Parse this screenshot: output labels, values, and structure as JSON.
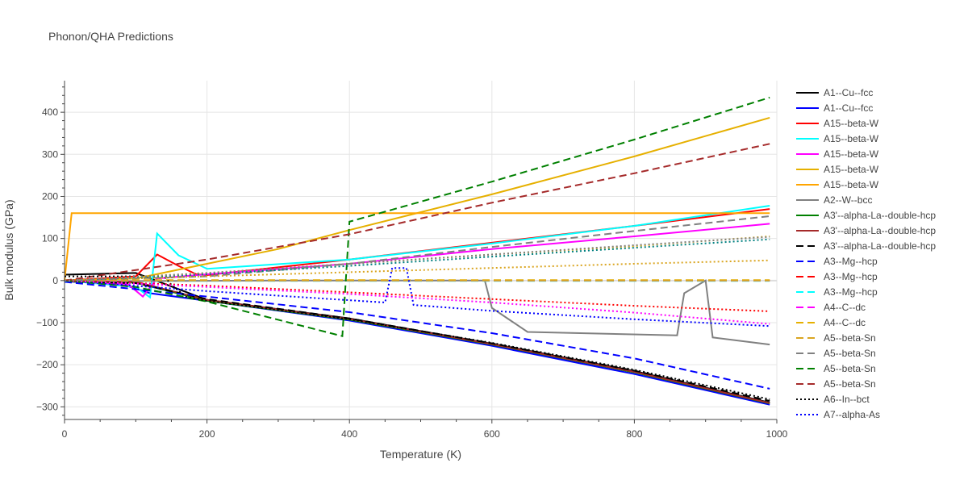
{
  "chart_data": {
    "type": "line",
    "title": "Phonon/QHA Predictions",
    "xlabel": "Temperature (K)",
    "ylabel": "Bulk modulus (GPa)",
    "xlim": [
      0,
      1000
    ],
    "ylim": [
      -330,
      475
    ],
    "xticks": [
      0,
      200,
      400,
      600,
      800,
      1000
    ],
    "yticks": [
      -300,
      -200,
      -100,
      0,
      100,
      200,
      300,
      400
    ],
    "grid": true,
    "legend_position": "right",
    "series": [
      {
        "name": "A1--Cu--fcc",
        "color": "#000000",
        "dash": "solid",
        "x": [
          0,
          100,
          200,
          400,
          600,
          800,
          990
        ],
        "y": [
          14,
          18,
          -46,
          -90,
          -150,
          -215,
          -290
        ]
      },
      {
        "name": "A1--Cu--fcc",
        "color": "#0000ff",
        "dash": "solid",
        "x": [
          0,
          80,
          120,
          200,
          400,
          600,
          800,
          990
        ],
        "y": [
          -2,
          -8,
          -30,
          -48,
          -95,
          -155,
          -222,
          -295
        ]
      },
      {
        "name": "A15--beta-W",
        "color": "#ff0000",
        "dash": "solid",
        "x": [
          0,
          100,
          130,
          160,
          185,
          200,
          400,
          600,
          800,
          990
        ],
        "y": [
          0,
          10,
          62,
          35,
          15,
          13,
          50,
          90,
          130,
          170
        ]
      },
      {
        "name": "A15--beta-W",
        "color": "#00ffff",
        "dash": "solid",
        "x": [
          0,
          100,
          120,
          130,
          160,
          200,
          400,
          600,
          800,
          990
        ],
        "y": [
          0,
          -15,
          -40,
          112,
          60,
          28,
          50,
          88,
          130,
          178
        ]
      },
      {
        "name": "A15--beta-W",
        "color": "#ff00ff",
        "dash": "solid",
        "x": [
          0,
          90,
          110,
          130,
          200,
          400,
          600,
          800,
          990
        ],
        "y": [
          0,
          -10,
          -38,
          5,
          15,
          40,
          75,
          105,
          135
        ]
      },
      {
        "name": "A15--beta-W",
        "color": "#e6b000",
        "dash": "solid",
        "x": [
          0,
          100,
          200,
          300,
          400,
          600,
          800,
          990
        ],
        "y": [
          0,
          5,
          40,
          75,
          120,
          205,
          295,
          387
        ]
      },
      {
        "name": "A15--beta-W",
        "color": "#ffa500",
        "dash": "solid",
        "x": [
          0,
          10,
          400,
          600,
          800,
          990
        ],
        "y": [
          0,
          160,
          160,
          160,
          160,
          160
        ]
      },
      {
        "name": "A2--W--bcc",
        "color": "#808080",
        "dash": "solid",
        "x": [
          0,
          300,
          590,
          600,
          650,
          860,
          870,
          900,
          910,
          990
        ],
        "y": [
          -2,
          0,
          0,
          -65,
          -122,
          -130,
          -30,
          0,
          -135,
          -152
        ]
      },
      {
        "name": "A3'--alpha-La--double-hcp",
        "color": "#008000",
        "dash": "solid",
        "x": [
          0,
          100,
          200,
          400,
          600,
          800,
          990
        ],
        "y": [
          -2,
          -5,
          -48,
          -93,
          -152,
          -218,
          -292
        ]
      },
      {
        "name": "A3'--alpha-La--double-hcp",
        "color": "#a52a2a",
        "dash": "solid",
        "x": [
          0,
          100,
          200,
          400,
          600,
          800,
          990
        ],
        "y": [
          -1,
          -3,
          -46,
          -91,
          -151,
          -217,
          -291
        ]
      },
      {
        "name": "A3'--alpha-La--double-hcp",
        "color": "#000000",
        "dash": "dash",
        "x": [
          0,
          100,
          200,
          400,
          600,
          800,
          990
        ],
        "y": [
          -3,
          -6,
          -44,
          -90,
          -149,
          -214,
          -286
        ]
      },
      {
        "name": "A3--Mg--hcp",
        "color": "#0000ff",
        "dash": "dash",
        "x": [
          0,
          200,
          400,
          600,
          800,
          990
        ],
        "y": [
          -3,
          -38,
          -75,
          -125,
          -185,
          -257
        ]
      },
      {
        "name": "A3--Mg--hcp",
        "color": "#ff0000",
        "dash": "dash",
        "x": [
          0,
          400,
          990
        ],
        "y": [
          0,
          0,
          0
        ]
      },
      {
        "name": "A3--Mg--hcp",
        "color": "#00ffff",
        "dash": "dash",
        "x": [
          0,
          400,
          990
        ],
        "y": [
          -1,
          -1,
          -1
        ]
      },
      {
        "name": "A4--C--dc",
        "color": "#ff00ff",
        "dash": "dash",
        "x": [
          0,
          400,
          990
        ],
        "y": [
          0,
          0,
          0
        ]
      },
      {
        "name": "A4--C--dc",
        "color": "#e6b000",
        "dash": "dash",
        "x": [
          0,
          400,
          990
        ],
        "y": [
          1,
          1,
          1
        ]
      },
      {
        "name": "A5--beta-Sn",
        "color": "#daa520",
        "dash": "dash",
        "x": [
          0,
          400,
          990
        ],
        "y": [
          0,
          0,
          0
        ]
      },
      {
        "name": "A5--beta-Sn",
        "color": "#808080",
        "dash": "dash",
        "x": [
          0,
          200,
          400,
          600,
          800,
          990
        ],
        "y": [
          0,
          10,
          40,
          80,
          118,
          153
        ]
      },
      {
        "name": "A5--beta-Sn",
        "color": "#008000",
        "dash": "dash",
        "x": [
          0,
          100,
          200,
          390,
          400,
          600,
          800,
          990
        ],
        "y": [
          0,
          -15,
          -50,
          -132,
          140,
          235,
          335,
          435
        ]
      },
      {
        "name": "A5--beta-Sn",
        "color": "#a52a2a",
        "dash": "dash",
        "x": [
          0,
          200,
          400,
          600,
          800,
          990
        ],
        "y": [
          0,
          50,
          110,
          185,
          255,
          325
        ]
      },
      {
        "name": "A6--In--bct",
        "color": "#000000",
        "dash": "dot",
        "x": [
          0,
          140,
          150,
          170,
          200,
          400,
          600,
          800,
          990
        ],
        "y": [
          10,
          10,
          -10,
          -38,
          -48,
          -92,
          -148,
          -212,
          -282
        ]
      },
      {
        "name": "A7--alpha-As",
        "color": "#0000ff",
        "dash": "dot",
        "x": [
          0,
          200,
          450,
          460,
          480,
          490,
          600,
          800,
          990
        ],
        "y": [
          0,
          -25,
          -52,
          30,
          30,
          -58,
          -72,
          -92,
          -108
        ]
      },
      {
        "name": "",
        "color": "#ff0000",
        "dash": "dot",
        "x": [
          0,
          200,
          400,
          600,
          800,
          990
        ],
        "y": [
          0,
          -12,
          -28,
          -44,
          -60,
          -73
        ]
      },
      {
        "name": "",
        "color": "#ff00ff",
        "dash": "dot",
        "x": [
          0,
          200,
          400,
          600,
          800,
          990
        ],
        "y": [
          0,
          -15,
          -32,
          -52,
          -76,
          -103
        ]
      },
      {
        "name": "",
        "color": "#e6b000",
        "dash": "dot",
        "x": [
          0,
          200,
          400,
          600,
          800,
          990
        ],
        "y": [
          0,
          18,
          40,
          62,
          82,
          105
        ]
      },
      {
        "name": "",
        "color": "#daa520",
        "dash": "dot",
        "x": [
          0,
          200,
          400,
          600,
          800,
          990
        ],
        "y": [
          0,
          10,
          20,
          30,
          40,
          48
        ]
      },
      {
        "name": "",
        "color": "#008080",
        "dash": "dot",
        "x": [
          0,
          200,
          400,
          600,
          800,
          990
        ],
        "y": [
          0,
          15,
          35,
          57,
          78,
          98
        ]
      },
      {
        "name": "",
        "color": "#808080",
        "dash": "dot",
        "x": [
          0,
          200,
          400,
          600,
          800,
          990
        ],
        "y": [
          0,
          18,
          40,
          62,
          84,
          104
        ]
      }
    ]
  }
}
